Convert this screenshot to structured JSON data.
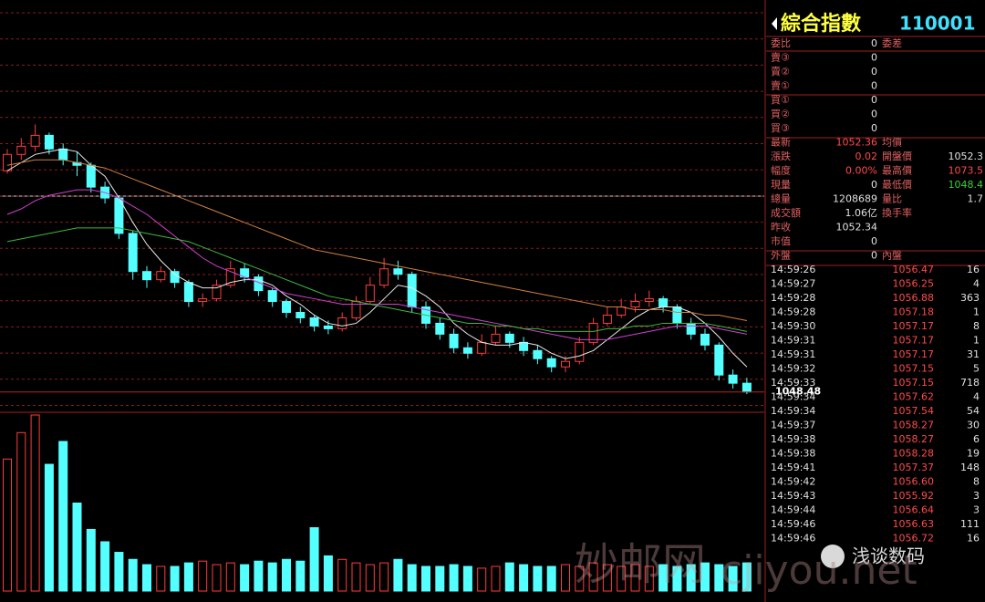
{
  "chart_data": [
    {
      "type": "candlestick",
      "grid": true,
      "up_color": "#ff3c3c",
      "down_color": "#54ffff",
      "ylim": [
        1047.8,
        1062.4
      ],
      "open": [
        1056.6,
        1057.2,
        1057.5,
        1057.9,
        1057.4,
        1056.9,
        1056.8,
        1056.0,
        1055.6,
        1054.3,
        1052.9,
        1052.6,
        1052.9,
        1052.5,
        1051.8,
        1051.9,
        1052.4,
        1053.0,
        1052.7,
        1052.2,
        1051.8,
        1051.4,
        1051.2,
        1050.9,
        1050.8,
        1051.2,
        1051.8,
        1052.4,
        1053.0,
        1052.8,
        1051.6,
        1051.0,
        1050.6,
        1050.1,
        1049.9,
        1050.3,
        1050.6,
        1050.3,
        1050.0,
        1049.7,
        1049.4,
        1049.6,
        1050.3,
        1051.0,
        1051.3,
        1051.6,
        1051.8,
        1051.9,
        1051.6,
        1051.0,
        1050.6,
        1050.2,
        1049.1,
        1048.8
      ],
      "high": [
        1057.4,
        1057.8,
        1058.3,
        1058.0,
        1057.6,
        1057.3,
        1056.9,
        1056.2,
        1055.7,
        1054.4,
        1053.1,
        1053.1,
        1053.0,
        1052.6,
        1052.1,
        1052.6,
        1053.3,
        1053.2,
        1052.8,
        1052.3,
        1051.9,
        1051.6,
        1051.3,
        1051.1,
        1051.4,
        1052.0,
        1052.7,
        1053.4,
        1053.3,
        1052.9,
        1051.8,
        1051.2,
        1050.8,
        1050.3,
        1050.6,
        1050.9,
        1050.7,
        1050.5,
        1050.2,
        1049.8,
        1049.8,
        1050.5,
        1051.2,
        1051.6,
        1051.9,
        1052.1,
        1052.2,
        1052.0,
        1051.7,
        1051.2,
        1050.8,
        1050.3,
        1049.3,
        1049.0
      ],
      "low": [
        1056.5,
        1057.0,
        1057.3,
        1057.2,
        1056.8,
        1056.4,
        1055.8,
        1055.4,
        1054.1,
        1052.6,
        1052.3,
        1052.5,
        1052.3,
        1051.6,
        1051.6,
        1051.8,
        1052.3,
        1052.5,
        1052.0,
        1051.6,
        1051.2,
        1051.0,
        1050.7,
        1050.6,
        1050.7,
        1051.1,
        1051.7,
        1052.3,
        1052.6,
        1051.4,
        1050.8,
        1050.4,
        1049.9,
        1049.7,
        1049.8,
        1050.2,
        1050.1,
        1049.8,
        1049.5,
        1049.2,
        1049.2,
        1049.5,
        1050.2,
        1050.9,
        1051.2,
        1051.4,
        1051.6,
        1051.4,
        1050.8,
        1050.4,
        1050.0,
        1048.9,
        1048.6,
        1048.4
      ],
      "close": [
        1057.2,
        1057.5,
        1057.9,
        1057.4,
        1057.0,
        1056.8,
        1056.0,
        1055.6,
        1054.3,
        1052.9,
        1052.6,
        1052.9,
        1052.5,
        1051.8,
        1051.9,
        1052.4,
        1053.0,
        1052.7,
        1052.2,
        1051.8,
        1051.4,
        1051.2,
        1050.9,
        1050.8,
        1051.2,
        1051.8,
        1052.4,
        1053.0,
        1052.8,
        1051.6,
        1051.0,
        1050.6,
        1050.1,
        1049.9,
        1050.3,
        1050.6,
        1050.3,
        1050.0,
        1049.7,
        1049.4,
        1049.6,
        1050.3,
        1051.0,
        1051.3,
        1051.6,
        1051.8,
        1051.9,
        1051.6,
        1051.0,
        1050.6,
        1050.2,
        1049.1,
        1048.8,
        1048.48
      ],
      "ma_lines": [
        {
          "color": "#e8e8e8",
          "values": [
            1056.6,
            1056.9,
            1057.2,
            1057.3,
            1057.4,
            1057.3,
            1056.8,
            1056.4,
            1055.6,
            1054.7,
            1053.9,
            1053.3,
            1052.8,
            1052.5,
            1052.3,
            1052.3,
            1052.5,
            1052.6,
            1052.6,
            1052.4,
            1052.0,
            1051.7,
            1051.3,
            1051.0,
            1050.9,
            1051.0,
            1051.4,
            1051.9,
            1052.4,
            1052.3,
            1052.0,
            1051.6,
            1051.0,
            1050.6,
            1050.3,
            1050.2,
            1050.2,
            1050.3,
            1050.2,
            1049.9,
            1049.7,
            1049.8,
            1050.0,
            1050.4,
            1050.8,
            1051.2,
            1051.5,
            1051.6,
            1051.6,
            1051.4,
            1051.0,
            1050.5,
            1049.9,
            1049.4
          ]
        },
        {
          "color": "#d040d0",
          "values": [
            1055.0,
            1055.2,
            1055.5,
            1055.7,
            1055.8,
            1055.9,
            1055.9,
            1055.8,
            1055.6,
            1055.3,
            1055.0,
            1054.6,
            1054.2,
            1053.8,
            1053.4,
            1053.1,
            1052.9,
            1052.7,
            1052.5,
            1052.3,
            1052.1,
            1052.0,
            1051.9,
            1051.8,
            1051.7,
            1051.7,
            1051.7,
            1051.7,
            1051.7,
            1051.6,
            1051.5,
            1051.4,
            1051.3,
            1051.2,
            1051.1,
            1051.0,
            1050.9,
            1050.8,
            1050.7,
            1050.6,
            1050.5,
            1050.4,
            1050.4,
            1050.4,
            1050.5,
            1050.6,
            1050.7,
            1050.8,
            1050.9,
            1050.9,
            1050.9,
            1050.8,
            1050.7,
            1050.6
          ]
        },
        {
          "color": "#3cb83c",
          "values": [
            1054.0,
            1054.1,
            1054.2,
            1054.3,
            1054.4,
            1054.5,
            1054.5,
            1054.5,
            1054.5,
            1054.4,
            1054.3,
            1054.2,
            1054.1,
            1054.0,
            1053.8,
            1053.6,
            1053.4,
            1053.2,
            1053.0,
            1052.8,
            1052.6,
            1052.4,
            1052.2,
            1052.0,
            1051.9,
            1051.8,
            1051.7,
            1051.6,
            1051.5,
            1051.4,
            1051.3,
            1051.2,
            1051.1,
            1051.0,
            1051.0,
            1050.9,
            1050.9,
            1050.8,
            1050.8,
            1050.7,
            1050.7,
            1050.7,
            1050.7,
            1050.8,
            1050.8,
            1050.9,
            1050.9,
            1051.0,
            1051.0,
            1051.0,
            1051.0,
            1050.9,
            1050.8,
            1050.7
          ]
        },
        {
          "color": "#d08040",
          "values": [
            1056.8,
            1056.9,
            1057.0,
            1057.0,
            1057.0,
            1056.9,
            1056.8,
            1056.7,
            1056.5,
            1056.3,
            1056.1,
            1055.9,
            1055.7,
            1055.5,
            1055.3,
            1055.1,
            1054.9,
            1054.7,
            1054.5,
            1054.3,
            1054.1,
            1053.9,
            1053.7,
            1053.6,
            1053.5,
            1053.4,
            1053.3,
            1053.2,
            1053.1,
            1053.0,
            1052.9,
            1052.8,
            1052.7,
            1052.6,
            1052.5,
            1052.4,
            1052.3,
            1052.2,
            1052.1,
            1052.0,
            1051.9,
            1051.8,
            1051.7,
            1051.6,
            1051.6,
            1051.5,
            1051.5,
            1051.5,
            1051.4,
            1051.4,
            1051.3,
            1051.3,
            1051.2,
            1051.1
          ]
        }
      ]
    },
    {
      "type": "bar",
      "ylim": [
        0,
        100
      ],
      "values": [
        75,
        90,
        100,
        72,
        85,
        50,
        35,
        28,
        22,
        18,
        15,
        14,
        14,
        16,
        17,
        15,
        16,
        15,
        17,
        16,
        18,
        17,
        36,
        20,
        18,
        16,
        15,
        16,
        18,
        15,
        14,
        14,
        15,
        14,
        13,
        14,
        16,
        15,
        14,
        14,
        15,
        14,
        16,
        15,
        14,
        15,
        14,
        15,
        14,
        15,
        16,
        15,
        14,
        16
      ]
    }
  ],
  "quote": {
    "title": "綜合指數",
    "code": "110001",
    "rows": [
      {
        "label": "委比",
        "value": "0",
        "label2": "委差"
      },
      {
        "label": "賣③",
        "value": "0"
      },
      {
        "label": "賣②",
        "value": "0"
      },
      {
        "label": "賣①",
        "value": "0"
      },
      {
        "label": "買①",
        "value": "0"
      },
      {
        "label": "買②",
        "value": "0"
      },
      {
        "label": "買③",
        "value": "0"
      },
      {
        "label": "最新",
        "value": "1052.36",
        "color": "#ff4a4a",
        "label2": "均價"
      },
      {
        "label": "漲跌",
        "value": "0.02",
        "color": "#ff4a4a",
        "label2": "開盤價",
        "value2": "1052.3"
      },
      {
        "label": "幅度",
        "value": "0.00%",
        "color": "#ff4a4a",
        "label2": "最高價",
        "value2": "1073.5",
        "color2": "#ff4a4a"
      },
      {
        "label": "現量",
        "value": "0",
        "label2": "最低價",
        "value2": "1048.4",
        "color2": "#3cd23c"
      },
      {
        "label": "總量",
        "value": "1208689",
        "label2": "量比",
        "value2": "1.7"
      },
      {
        "label": "成交額",
        "value": "1.06亿",
        "label2": "換手率"
      },
      {
        "label": "昨收",
        "value": "1052.34"
      },
      {
        "label": "市值",
        "value": "0"
      },
      {
        "label": "外盤",
        "value": "0",
        "label2": "內盤"
      }
    ]
  },
  "ticks": {
    "price_color": "#ff4a4a",
    "rows": [
      [
        "14:59:26",
        "1056.47",
        "16"
      ],
      [
        "14:59:27",
        "1056.25",
        "4"
      ],
      [
        "14:59:28",
        "1056.88",
        "363"
      ],
      [
        "14:59:28",
        "1057.18",
        "1"
      ],
      [
        "14:59:30",
        "1057.17",
        "8"
      ],
      [
        "14:59:31",
        "1057.17",
        "1"
      ],
      [
        "14:59:31",
        "1057.17",
        "31"
      ],
      [
        "14:59:32",
        "1057.15",
        "5"
      ],
      [
        "14:59:33",
        "1057.15",
        "718"
      ],
      [
        "14:59:34",
        "1057.62",
        "4"
      ],
      [
        "14:59:34",
        "1057.54",
        "54"
      ],
      [
        "14:59:37",
        "1058.27",
        "30"
      ],
      [
        "14:59:38",
        "1058.27",
        "6"
      ],
      [
        "14:59:38",
        "1058.28",
        "19"
      ],
      [
        "14:59:41",
        "1057.37",
        "148"
      ],
      [
        "14:59:42",
        "1056.60",
        "8"
      ],
      [
        "14:59:43",
        "1055.92",
        "3"
      ],
      [
        "14:59:44",
        "1056.64",
        "3"
      ],
      [
        "14:59:46",
        "1056.63",
        "111"
      ],
      [
        "14:59:46",
        "1056.72",
        "16"
      ]
    ]
  },
  "watermark": {
    "account": "浅谈数码",
    "site_cn": "妙邮网",
    "site": "cjiyou.net"
  }
}
